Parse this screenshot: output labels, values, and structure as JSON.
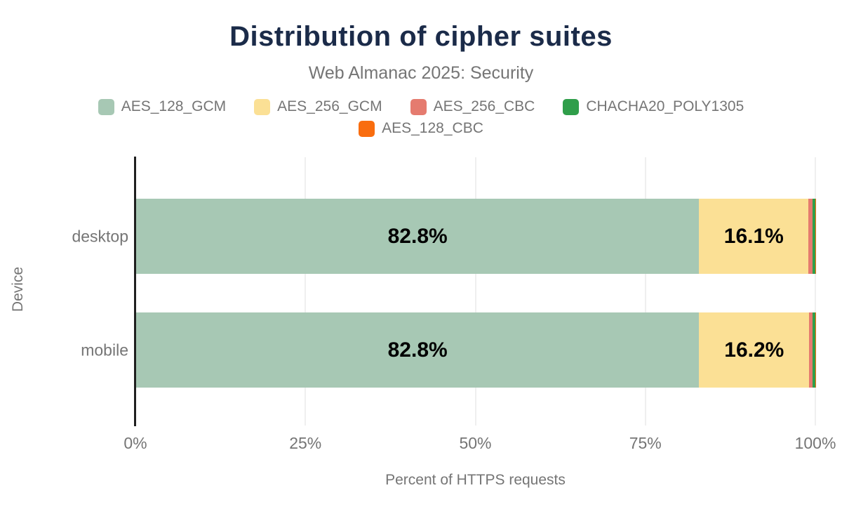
{
  "header": {
    "title": "Distribution of cipher suites",
    "subtitle": "Web Almanac 2025: Security"
  },
  "chart_data": {
    "type": "bar",
    "orientation": "horizontal",
    "stacked": true,
    "categories": [
      "desktop",
      "mobile"
    ],
    "series": [
      {
        "name": "AES_128_GCM",
        "color": "#a7c8b4",
        "values": [
          82.8,
          82.8
        ],
        "data_labels": [
          "82.8%",
          "82.8%"
        ]
      },
      {
        "name": "AES_256_GCM",
        "color": "#fbe095",
        "values": [
          16.1,
          16.2
        ],
        "data_labels": [
          "16.1%",
          "16.2%"
        ]
      },
      {
        "name": "AES_256_CBC",
        "color": "#e57b6f",
        "values": [
          0.6,
          0.5
        ],
        "data_labels": [
          "",
          ""
        ]
      },
      {
        "name": "CHACHA20_POLY1305",
        "color": "#2f9e4a",
        "values": [
          0.4,
          0.4
        ],
        "data_labels": [
          "",
          ""
        ]
      },
      {
        "name": "AES_128_CBC",
        "color": "#f96d0f",
        "values": [
          0.1,
          0.1
        ],
        "data_labels": [
          "",
          ""
        ]
      }
    ],
    "xlabel": "Percent of HTTPS requests",
    "ylabel": "Device",
    "xlim": [
      0,
      100
    ],
    "x_ticks": [
      {
        "value": 0,
        "label": "0%"
      },
      {
        "value": 25,
        "label": "25%"
      },
      {
        "value": 50,
        "label": "50%"
      },
      {
        "value": 75,
        "label": "75%"
      },
      {
        "value": 100,
        "label": "100%"
      }
    ],
    "grid": true,
    "legend_position": "top"
  },
  "colors": {
    "title_text": "#1b2b49",
    "muted_text": "#757575",
    "axis_line": "#1f1f1f",
    "gridline": "#efefef",
    "data_label": "#000000",
    "background": "#ffffff"
  }
}
